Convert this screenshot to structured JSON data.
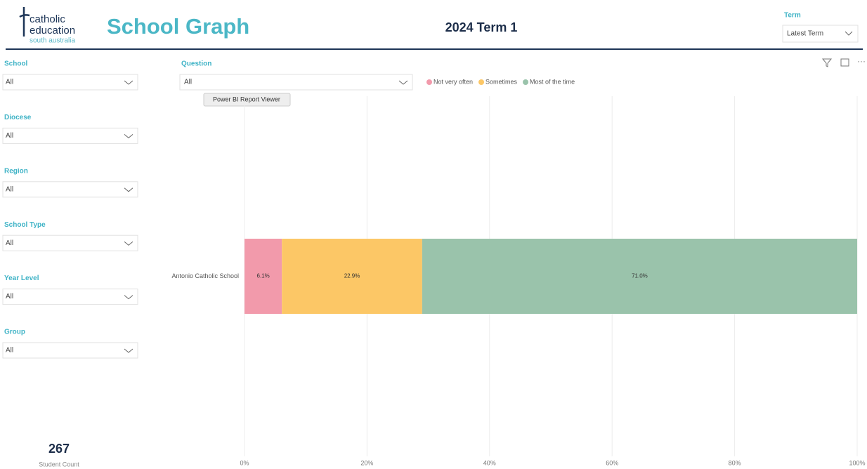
{
  "header": {
    "logo": [
      "catholic",
      "education",
      "south australia"
    ],
    "title": "School Graph",
    "period": "2024 Term 1",
    "term_label": "Term",
    "term_value": "Latest Term"
  },
  "filters": [
    {
      "label": "School",
      "value": "All"
    },
    {
      "label": "Diocese",
      "value": "All"
    },
    {
      "label": "Region",
      "value": "All"
    },
    {
      "label": "School Type",
      "value": "All"
    },
    {
      "label": "Year Level",
      "value": "All"
    },
    {
      "label": "Group",
      "value": "All"
    }
  ],
  "question": {
    "label": "Question",
    "value": "All"
  },
  "tooltip": "Power BI Report Viewer",
  "card": {
    "value": "267",
    "label": "Student Count"
  },
  "chart_data": {
    "type": "stacked_barh",
    "categories": [
      "Antonio Catholic School"
    ],
    "series": [
      {
        "name": "Not very often",
        "color": "#f29aab",
        "values": [
          6.1
        ],
        "value_labels": [
          "6.1%"
        ]
      },
      {
        "name": "Sometimes",
        "color": "#fcc766",
        "values": [
          22.9
        ],
        "value_labels": [
          "22.9%"
        ]
      },
      {
        "name": "Most of the time",
        "color": "#9ac3ab",
        "values": [
          71.0
        ],
        "value_labels": [
          "71.0%"
        ]
      }
    ],
    "xlim": [
      0,
      100
    ],
    "xticks": [
      {
        "value": 0,
        "label": "0%"
      },
      {
        "value": 20,
        "label": "20%"
      },
      {
        "value": 40,
        "label": "40%"
      },
      {
        "value": 60,
        "label": "60%"
      },
      {
        "value": 80,
        "label": "80%"
      },
      {
        "value": 100,
        "label": "100%"
      }
    ],
    "grid": true,
    "legend": "top"
  }
}
